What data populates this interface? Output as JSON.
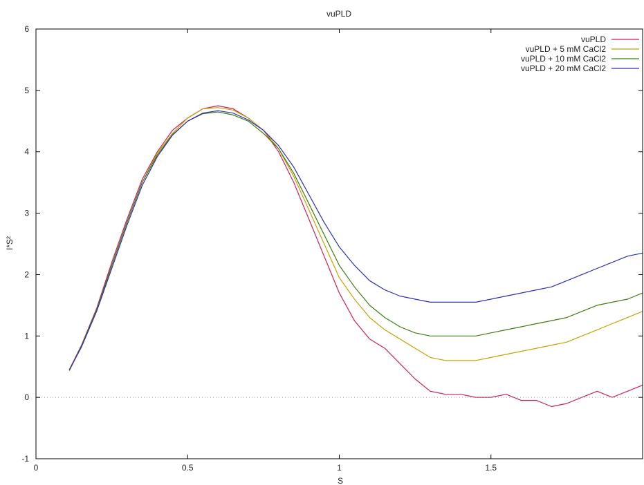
{
  "chart_data": {
    "type": "line",
    "title": "vuPLD",
    "xlabel": "S",
    "ylabel": "I*S²",
    "xlim": [
      0,
      2.0
    ],
    "ylim": [
      -1,
      6
    ],
    "x_ticks": [
      "0",
      "0.5",
      "1",
      "1.5"
    ],
    "y_ticks": [
      "-1",
      "0",
      "1",
      "2",
      "3",
      "4",
      "5",
      "6"
    ],
    "zero_line": true,
    "grid": false,
    "legend_position": "top-right",
    "series": [
      {
        "name": "vuPLD",
        "color": "#cc1f5a",
        "x": [
          0.11,
          0.15,
          0.2,
          0.25,
          0.3,
          0.35,
          0.4,
          0.45,
          0.5,
          0.55,
          0.6,
          0.65,
          0.7,
          0.75,
          0.8,
          0.85,
          0.9,
          0.95,
          1.0,
          1.05,
          1.1,
          1.15,
          1.2,
          1.25,
          1.3,
          1.35,
          1.4,
          1.45,
          1.5,
          1.55,
          1.6,
          1.65,
          1.7,
          1.75,
          1.8,
          1.85,
          1.9,
          1.95,
          2.0
        ],
        "y": [
          0.45,
          0.85,
          1.45,
          2.2,
          2.9,
          3.55,
          4.0,
          4.35,
          4.55,
          4.7,
          4.75,
          4.7,
          4.55,
          4.35,
          4.0,
          3.5,
          2.9,
          2.3,
          1.7,
          1.25,
          0.95,
          0.8,
          0.55,
          0.3,
          0.1,
          0.05,
          0.05,
          0.0,
          0.0,
          0.05,
          -0.05,
          -0.05,
          -0.15,
          -0.1,
          0.0,
          0.1,
          0.0,
          0.1,
          0.2
        ]
      },
      {
        "name": "vuPLD + 5 mM CaCl2",
        "color": "#c9a100",
        "x": [
          0.11,
          0.15,
          0.2,
          0.25,
          0.3,
          0.35,
          0.4,
          0.45,
          0.5,
          0.55,
          0.6,
          0.65,
          0.7,
          0.75,
          0.8,
          0.85,
          0.9,
          0.95,
          1.0,
          1.05,
          1.1,
          1.15,
          1.2,
          1.25,
          1.3,
          1.35,
          1.4,
          1.45,
          1.5,
          1.55,
          1.6,
          1.65,
          1.7,
          1.75,
          1.8,
          1.85,
          1.9,
          1.95,
          2.0
        ],
        "y": [
          0.43,
          0.83,
          1.42,
          2.15,
          2.85,
          3.5,
          3.98,
          4.3,
          4.55,
          4.7,
          4.72,
          4.68,
          4.55,
          4.35,
          4.05,
          3.6,
          3.05,
          2.5,
          1.95,
          1.6,
          1.3,
          1.1,
          0.95,
          0.8,
          0.65,
          0.6,
          0.6,
          0.6,
          0.65,
          0.7,
          0.75,
          0.8,
          0.85,
          0.9,
          1.0,
          1.1,
          1.2,
          1.3,
          1.4
        ]
      },
      {
        "name": "vuPLD + 10 mM CaCl2",
        "color": "#3e7d12",
        "x": [
          0.11,
          0.15,
          0.2,
          0.25,
          0.3,
          0.35,
          0.4,
          0.45,
          0.5,
          0.55,
          0.6,
          0.65,
          0.7,
          0.75,
          0.8,
          0.85,
          0.9,
          0.95,
          1.0,
          1.05,
          1.1,
          1.15,
          1.2,
          1.25,
          1.3,
          1.35,
          1.4,
          1.45,
          1.5,
          1.55,
          1.6,
          1.65,
          1.7,
          1.75,
          1.8,
          1.85,
          1.9,
          1.95,
          2.0
        ],
        "y": [
          0.44,
          0.84,
          1.43,
          2.15,
          2.85,
          3.5,
          3.95,
          4.28,
          4.5,
          4.62,
          4.65,
          4.6,
          4.5,
          4.3,
          4.05,
          3.65,
          3.15,
          2.65,
          2.15,
          1.8,
          1.5,
          1.3,
          1.15,
          1.05,
          1.0,
          1.0,
          1.0,
          1.0,
          1.05,
          1.1,
          1.15,
          1.2,
          1.25,
          1.3,
          1.4,
          1.5,
          1.55,
          1.6,
          1.7
        ]
      },
      {
        "name": "vuPLD + 20 mM CaCl2",
        "color": "#2b2fb8",
        "x": [
          0.11,
          0.15,
          0.2,
          0.25,
          0.3,
          0.35,
          0.4,
          0.45,
          0.5,
          0.55,
          0.6,
          0.65,
          0.7,
          0.75,
          0.8,
          0.85,
          0.9,
          0.95,
          1.0,
          1.05,
          1.1,
          1.15,
          1.2,
          1.25,
          1.3,
          1.35,
          1.4,
          1.45,
          1.5,
          1.55,
          1.6,
          1.65,
          1.7,
          1.75,
          1.8,
          1.85,
          1.9,
          1.95,
          2.0
        ],
        "y": [
          0.45,
          0.82,
          1.4,
          2.1,
          2.8,
          3.45,
          3.92,
          4.27,
          4.5,
          4.63,
          4.67,
          4.63,
          4.52,
          4.35,
          4.1,
          3.75,
          3.3,
          2.85,
          2.45,
          2.15,
          1.9,
          1.75,
          1.65,
          1.6,
          1.55,
          1.55,
          1.55,
          1.55,
          1.6,
          1.65,
          1.7,
          1.75,
          1.8,
          1.9,
          2.0,
          2.1,
          2.2,
          2.3,
          2.35
        ]
      }
    ]
  }
}
